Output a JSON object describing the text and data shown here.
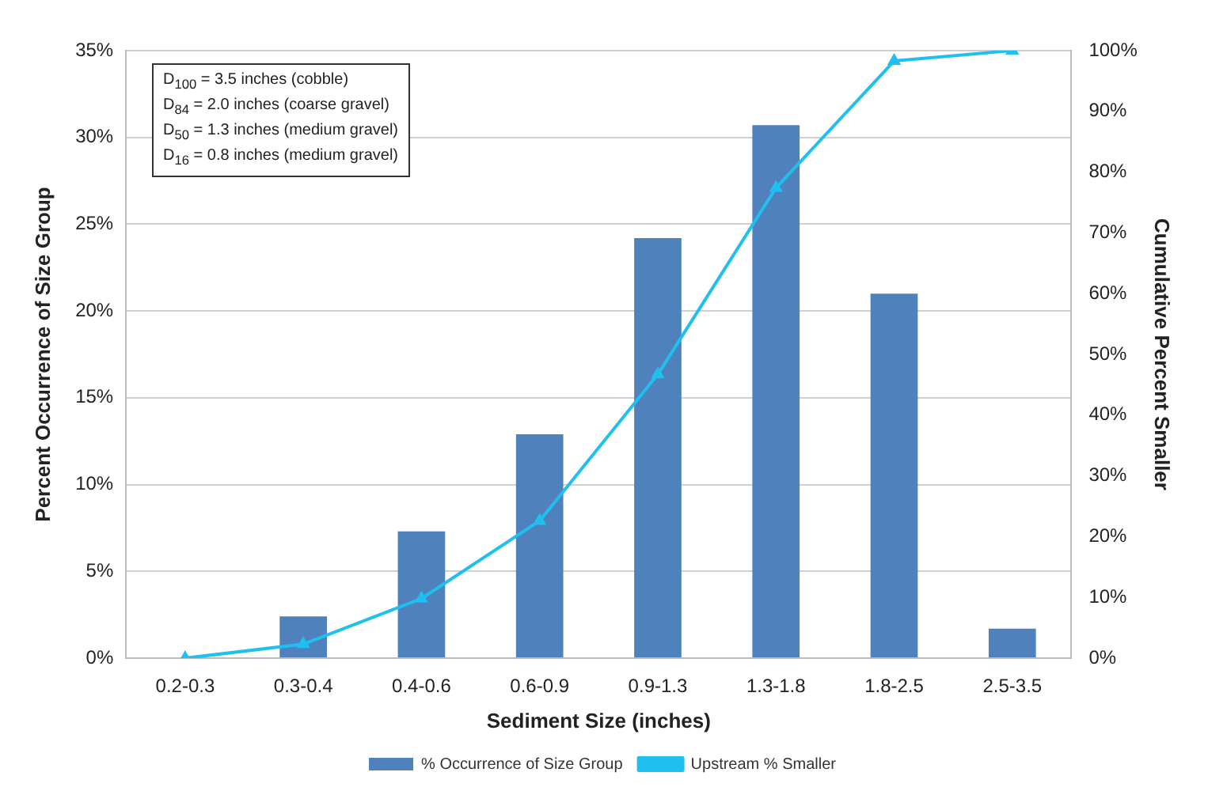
{
  "chart_data": {
    "type": "bar",
    "xlabel": "Sediment Size (inches)",
    "ylabel": "Percent Occurrence of Size Group",
    "y2label": "Cumulative Percent Smaller",
    "categories": [
      "0.2-0.3",
      "0.3-0.4",
      "0.4-0.6",
      "0.6-0.9",
      "0.9-1.3",
      "1.3-1.8",
      "1.8-2.5",
      "2.5-3.5"
    ],
    "series": [
      {
        "name": "% Occurrence of Size Group",
        "color": "#4f81bd",
        "values": [
          0,
          2.4,
          7.3,
          12.9,
          24.2,
          30.7,
          21.0,
          1.7
        ]
      },
      {
        "name": "Upstream % Smaller",
        "type": "line",
        "axis": "y2",
        "color": "#1fbfef",
        "marker": "triangle",
        "values": [
          0,
          2.3,
          9.8,
          22.6,
          46.7,
          77.4,
          98.3,
          100
        ]
      }
    ],
    "ylim": [
      0,
      35
    ],
    "yticks": [
      {
        "value": 0,
        "label": "0%"
      },
      {
        "value": 5,
        "label": "5%"
      },
      {
        "value": 10,
        "label": "10%"
      },
      {
        "value": 15,
        "label": "15%"
      },
      {
        "value": 20,
        "label": "20%"
      },
      {
        "value": 25,
        "label": "25%"
      },
      {
        "value": 30,
        "label": "30%"
      },
      {
        "value": 35,
        "label": "35%"
      }
    ],
    "y2lim": [
      0,
      100
    ],
    "y2ticks": [
      {
        "value": 0,
        "label": "0%"
      },
      {
        "value": 10,
        "label": "10%"
      },
      {
        "value": 20,
        "label": "20%"
      },
      {
        "value": 30,
        "label": "30%"
      },
      {
        "value": 40,
        "label": "40%"
      },
      {
        "value": 50,
        "label": "50%"
      },
      {
        "value": 60,
        "label": "60%"
      },
      {
        "value": 70,
        "label": "70%"
      },
      {
        "value": 80,
        "label": "80%"
      },
      {
        "value": 90,
        "label": "90%"
      },
      {
        "value": 100,
        "label": "100%"
      }
    ],
    "grid": "y",
    "legend": "bottom",
    "annotations": [
      "D$_{100}$ = 3.5 inches (cobble)",
      "D$_{84}$ = 2.0 inches (coarse gravel)",
      "D$_{50}$ = 1.3 inches (medium gravel)",
      "D$_{16}$ = 0.8 inches (medium gravel)"
    ]
  }
}
